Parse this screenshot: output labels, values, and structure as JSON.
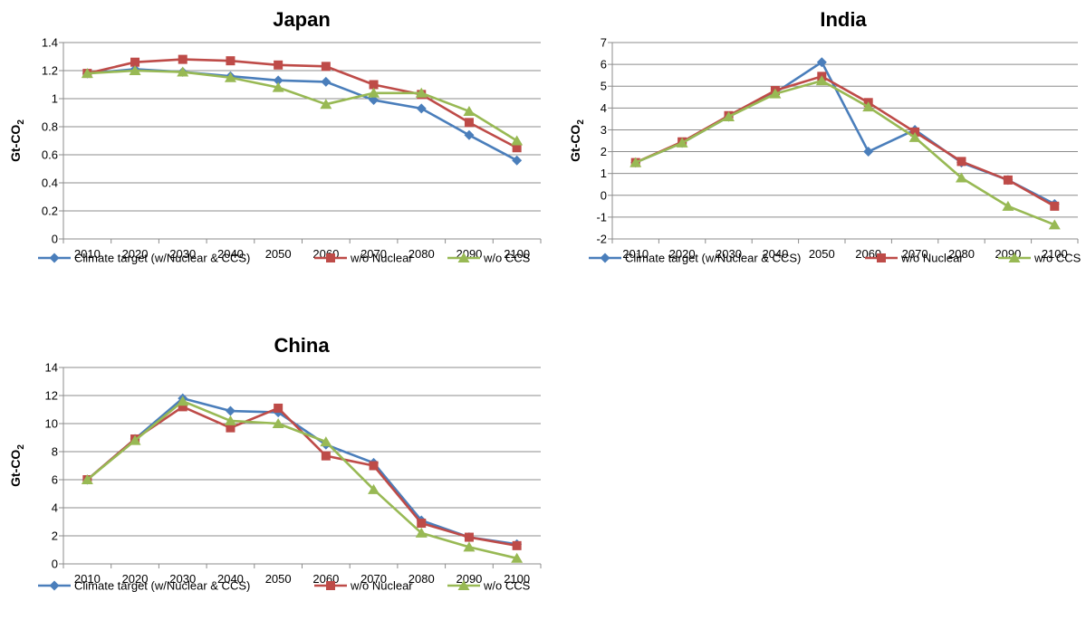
{
  "colors": {
    "climate": "#4a7ebb",
    "nuclear": "#be4b48",
    "ccs": "#98b954",
    "grid": "#8c8c8c"
  },
  "chart_data": [
    {
      "type": "line",
      "title": "Japan",
      "ylabel": "Gt-CO",
      "ylabel_sub": "2",
      "categories": [
        "2010",
        "2020",
        "2030",
        "2040",
        "2050",
        "2060",
        "2070",
        "2080",
        "2090",
        "2100"
      ],
      "ylim": [
        0,
        1.4
      ],
      "yticks": [
        "0",
        "0.2",
        "0.4",
        "0.6",
        "0.8",
        "1",
        "1.2",
        "1.4"
      ],
      "grid": true,
      "legend": "bottom",
      "series": [
        {
          "name": "Climate target (w/Nuclear & CCS)",
          "marker": "diamond",
          "values": [
            1.18,
            1.21,
            1.19,
            1.16,
            1.13,
            1.12,
            0.99,
            0.93,
            0.74,
            0.56
          ]
        },
        {
          "name": "w/o Nuclear",
          "marker": "square",
          "values": [
            1.18,
            1.26,
            1.28,
            1.27,
            1.24,
            1.23,
            1.1,
            1.03,
            0.83,
            0.65
          ]
        },
        {
          "name": "w/o CCS",
          "marker": "triangle",
          "values": [
            1.18,
            1.2,
            1.19,
            1.15,
            1.08,
            0.96,
            1.04,
            1.04,
            0.91,
            0.7
          ]
        }
      ]
    },
    {
      "type": "line",
      "title": "India",
      "ylabel": "Gt-CO",
      "ylabel_sub": "2",
      "categories": [
        "2010",
        "2020",
        "2030",
        "2040",
        "2050",
        "2060",
        "2070",
        "2080",
        "2090",
        "2100"
      ],
      "ylim": [
        -2,
        7
      ],
      "yticks": [
        "-2",
        "-1",
        "0",
        "1",
        "2",
        "3",
        "4",
        "5",
        "6",
        "7"
      ],
      "grid": true,
      "legend": "bottom",
      "series": [
        {
          "name": "Climate target (w/Nuclear & CCS)",
          "marker": "diamond",
          "values": [
            1.5,
            2.4,
            3.6,
            4.7,
            6.1,
            2.0,
            3.0,
            1.5,
            0.7,
            -0.4
          ]
        },
        {
          "name": "w/o Nuclear",
          "marker": "square",
          "values": [
            1.5,
            2.45,
            3.65,
            4.8,
            5.45,
            4.25,
            2.9,
            1.55,
            0.7,
            -0.5
          ]
        },
        {
          "name": "w/o CCS",
          "marker": "triangle",
          "values": [
            1.5,
            2.4,
            3.6,
            4.65,
            5.25,
            4.05,
            2.65,
            0.8,
            -0.5,
            -1.35
          ]
        }
      ]
    },
    {
      "type": "line",
      "title": "China",
      "ylabel": "Gt-CO",
      "ylabel_sub": "2",
      "categories": [
        "2010",
        "2020",
        "2030",
        "2040",
        "2050",
        "2060",
        "2070",
        "2080",
        "2090",
        "2100"
      ],
      "ylim": [
        0,
        14
      ],
      "yticks": [
        "0",
        "2",
        "4",
        "6",
        "8",
        "10",
        "12",
        "14"
      ],
      "grid": true,
      "legend": "bottom",
      "series": [
        {
          "name": "Climate target (w/Nuclear & CCS)",
          "marker": "diamond",
          "values": [
            6.0,
            8.9,
            11.8,
            10.9,
            10.8,
            8.5,
            7.2,
            3.1,
            1.9,
            1.4
          ]
        },
        {
          "name": "w/o Nuclear",
          "marker": "square",
          "values": [
            6.0,
            8.9,
            11.2,
            9.7,
            11.1,
            7.7,
            7.0,
            2.9,
            1.9,
            1.3
          ]
        },
        {
          "name": "w/o CCS",
          "marker": "triangle",
          "values": [
            6.0,
            8.8,
            11.6,
            10.2,
            10.0,
            8.7,
            5.3,
            2.2,
            1.2,
            0.4
          ]
        }
      ]
    }
  ]
}
